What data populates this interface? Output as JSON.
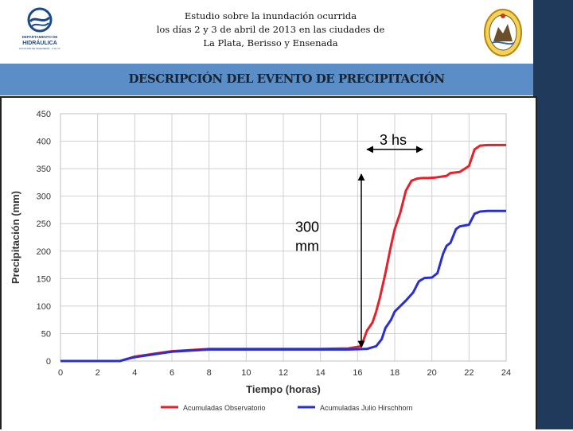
{
  "header": {
    "line1": "Estudio sobre la inundación ocurrida",
    "line2": "los días 2 y 3 de abril de 2013 en las ciudades de",
    "line3": "La Plata, Berisso y Ensenada",
    "logo_left": {
      "line1": "DEPARTAMENTO DE",
      "line2": "HIDRÁULICA",
      "line3": "FACULTAD DE INGENIERÍA · U.N.L.P."
    }
  },
  "banner": {
    "title": "DESCRIPCIÓN DEL EVENTO DE PRECIPITACIÓN"
  },
  "colors": {
    "series_red": "#e8202a",
    "series_blue": "#2a2fd0",
    "banner": "#5b8ec6",
    "side_bar": "#1f3a5a"
  },
  "chart_data": {
    "type": "line",
    "xlabel": "Tiempo (horas)",
    "ylabel": "Precipitación (mm)",
    "xlim": [
      0,
      24
    ],
    "ylim": [
      0,
      450
    ],
    "x_ticks": [
      0,
      2,
      4,
      6,
      8,
      10,
      12,
      14,
      16,
      18,
      20,
      22,
      24
    ],
    "y_ticks": [
      0,
      50,
      100,
      150,
      200,
      250,
      300,
      350,
      400,
      450
    ],
    "grid": true,
    "legend_position": "bottom",
    "series": [
      {
        "name": "Acumuladas Observatorio",
        "color": "#e8202a",
        "x": [
          0,
          3.2,
          3.5,
          4,
          5,
          6,
          7,
          8,
          10,
          12,
          14,
          15.5,
          16.2,
          16.5,
          16.8,
          17,
          17.2,
          17.5,
          17.8,
          18,
          18.3,
          18.6,
          18.9,
          19.2,
          19.5,
          19.8,
          20.2,
          20.8,
          21,
          21.5,
          22,
          22.3,
          22.6,
          23,
          24
        ],
        "y": [
          0,
          0,
          3,
          8,
          13,
          18,
          20,
          22,
          22,
          22,
          22,
          23,
          27,
          55,
          70,
          90,
          115,
          160,
          210,
          240,
          270,
          310,
          328,
          332,
          333,
          333,
          334,
          337,
          342,
          344,
          355,
          385,
          392,
          393,
          393
        ]
      },
      {
        "name": "Acumuladas Julio Hirschhorn",
        "color": "#2a2fd0",
        "x": [
          0,
          3.2,
          3.5,
          4,
          5,
          6,
          7,
          8,
          10,
          12,
          14,
          15.5,
          16.5,
          17,
          17.3,
          17.5,
          17.8,
          18,
          18.3,
          18.6,
          19,
          19.3,
          19.6,
          20,
          20.3,
          20.6,
          20.8,
          21,
          21.3,
          21.5,
          22,
          22.3,
          22.6,
          23,
          24
        ],
        "y": [
          0,
          0,
          3,
          7,
          12,
          17,
          19,
          21,
          21,
          21,
          21,
          21,
          22,
          27,
          40,
          60,
          75,
          90,
          100,
          110,
          125,
          145,
          151,
          152,
          160,
          195,
          210,
          215,
          240,
          245,
          248,
          268,
          272,
          273,
          273
        ]
      }
    ],
    "annotations": {
      "duration_label": "3 hs",
      "depth_label_line1": "300",
      "depth_label_line2": "mm",
      "duration_arrow_x": [
        16.5,
        19.5
      ],
      "duration_arrow_y": 385,
      "depth_arrow_x": 16.2,
      "depth_arrow_y": [
        25,
        340
      ]
    }
  }
}
